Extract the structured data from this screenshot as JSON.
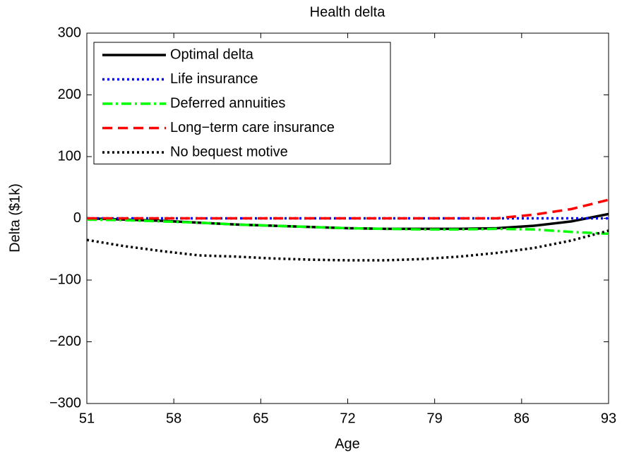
{
  "chart_data": {
    "type": "line",
    "title": "Health delta",
    "x_label": "Age",
    "y_label": "Delta ($1k)",
    "x": [
      51,
      54,
      57,
      60,
      63,
      66,
      69,
      72,
      75,
      78,
      81,
      84,
      87,
      90,
      93
    ],
    "series": [
      {
        "name": "Optimal delta",
        "color": "#000000",
        "linestyle": "-",
        "values": [
          0,
          -2,
          -4,
          -7,
          -10,
          -12,
          -14,
          -16,
          -17,
          -17,
          -17,
          -16,
          -12,
          -5,
          7
        ]
      },
      {
        "name": "Life insurance",
        "color": "#0000ff",
        "linestyle": ":",
        "values": [
          0,
          0,
          0,
          0,
          0,
          0,
          0,
          0,
          0,
          0,
          0,
          0,
          0,
          0,
          0
        ]
      },
      {
        "name": "Deferred annuities",
        "color": "#00ff00",
        "linestyle": "-.",
        "values": [
          -2,
          -3,
          -5,
          -7,
          -10,
          -12,
          -14,
          -16,
          -17,
          -18,
          -18,
          -17,
          -18,
          -22,
          -25
        ]
      },
      {
        "name": "Long−term care insurance",
        "color": "#ff0000",
        "linestyle": "--",
        "values": [
          0,
          0,
          0,
          0,
          0,
          0,
          0,
          0,
          0,
          0,
          0,
          0,
          6,
          15,
          30
        ]
      },
      {
        "name": "No bequest motive",
        "color": "#000000",
        "linestyle": ":",
        "values": [
          -35,
          -45,
          -53,
          -60,
          -62,
          -65,
          -67,
          -68,
          -68,
          -66,
          -62,
          -56,
          -48,
          -36,
          -20
        ]
      }
    ],
    "xlim": [
      51,
      93
    ],
    "xticks": [
      51,
      58,
      65,
      72,
      79,
      86,
      93
    ],
    "ylim": [
      -300,
      300
    ],
    "yticks": [
      {
        "value": -300,
        "label": "−300"
      },
      {
        "value": -200,
        "label": "−200"
      },
      {
        "value": -100,
        "label": "−100"
      },
      0,
      100,
      200,
      300
    ],
    "legend": "upper left",
    "grid": false
  }
}
